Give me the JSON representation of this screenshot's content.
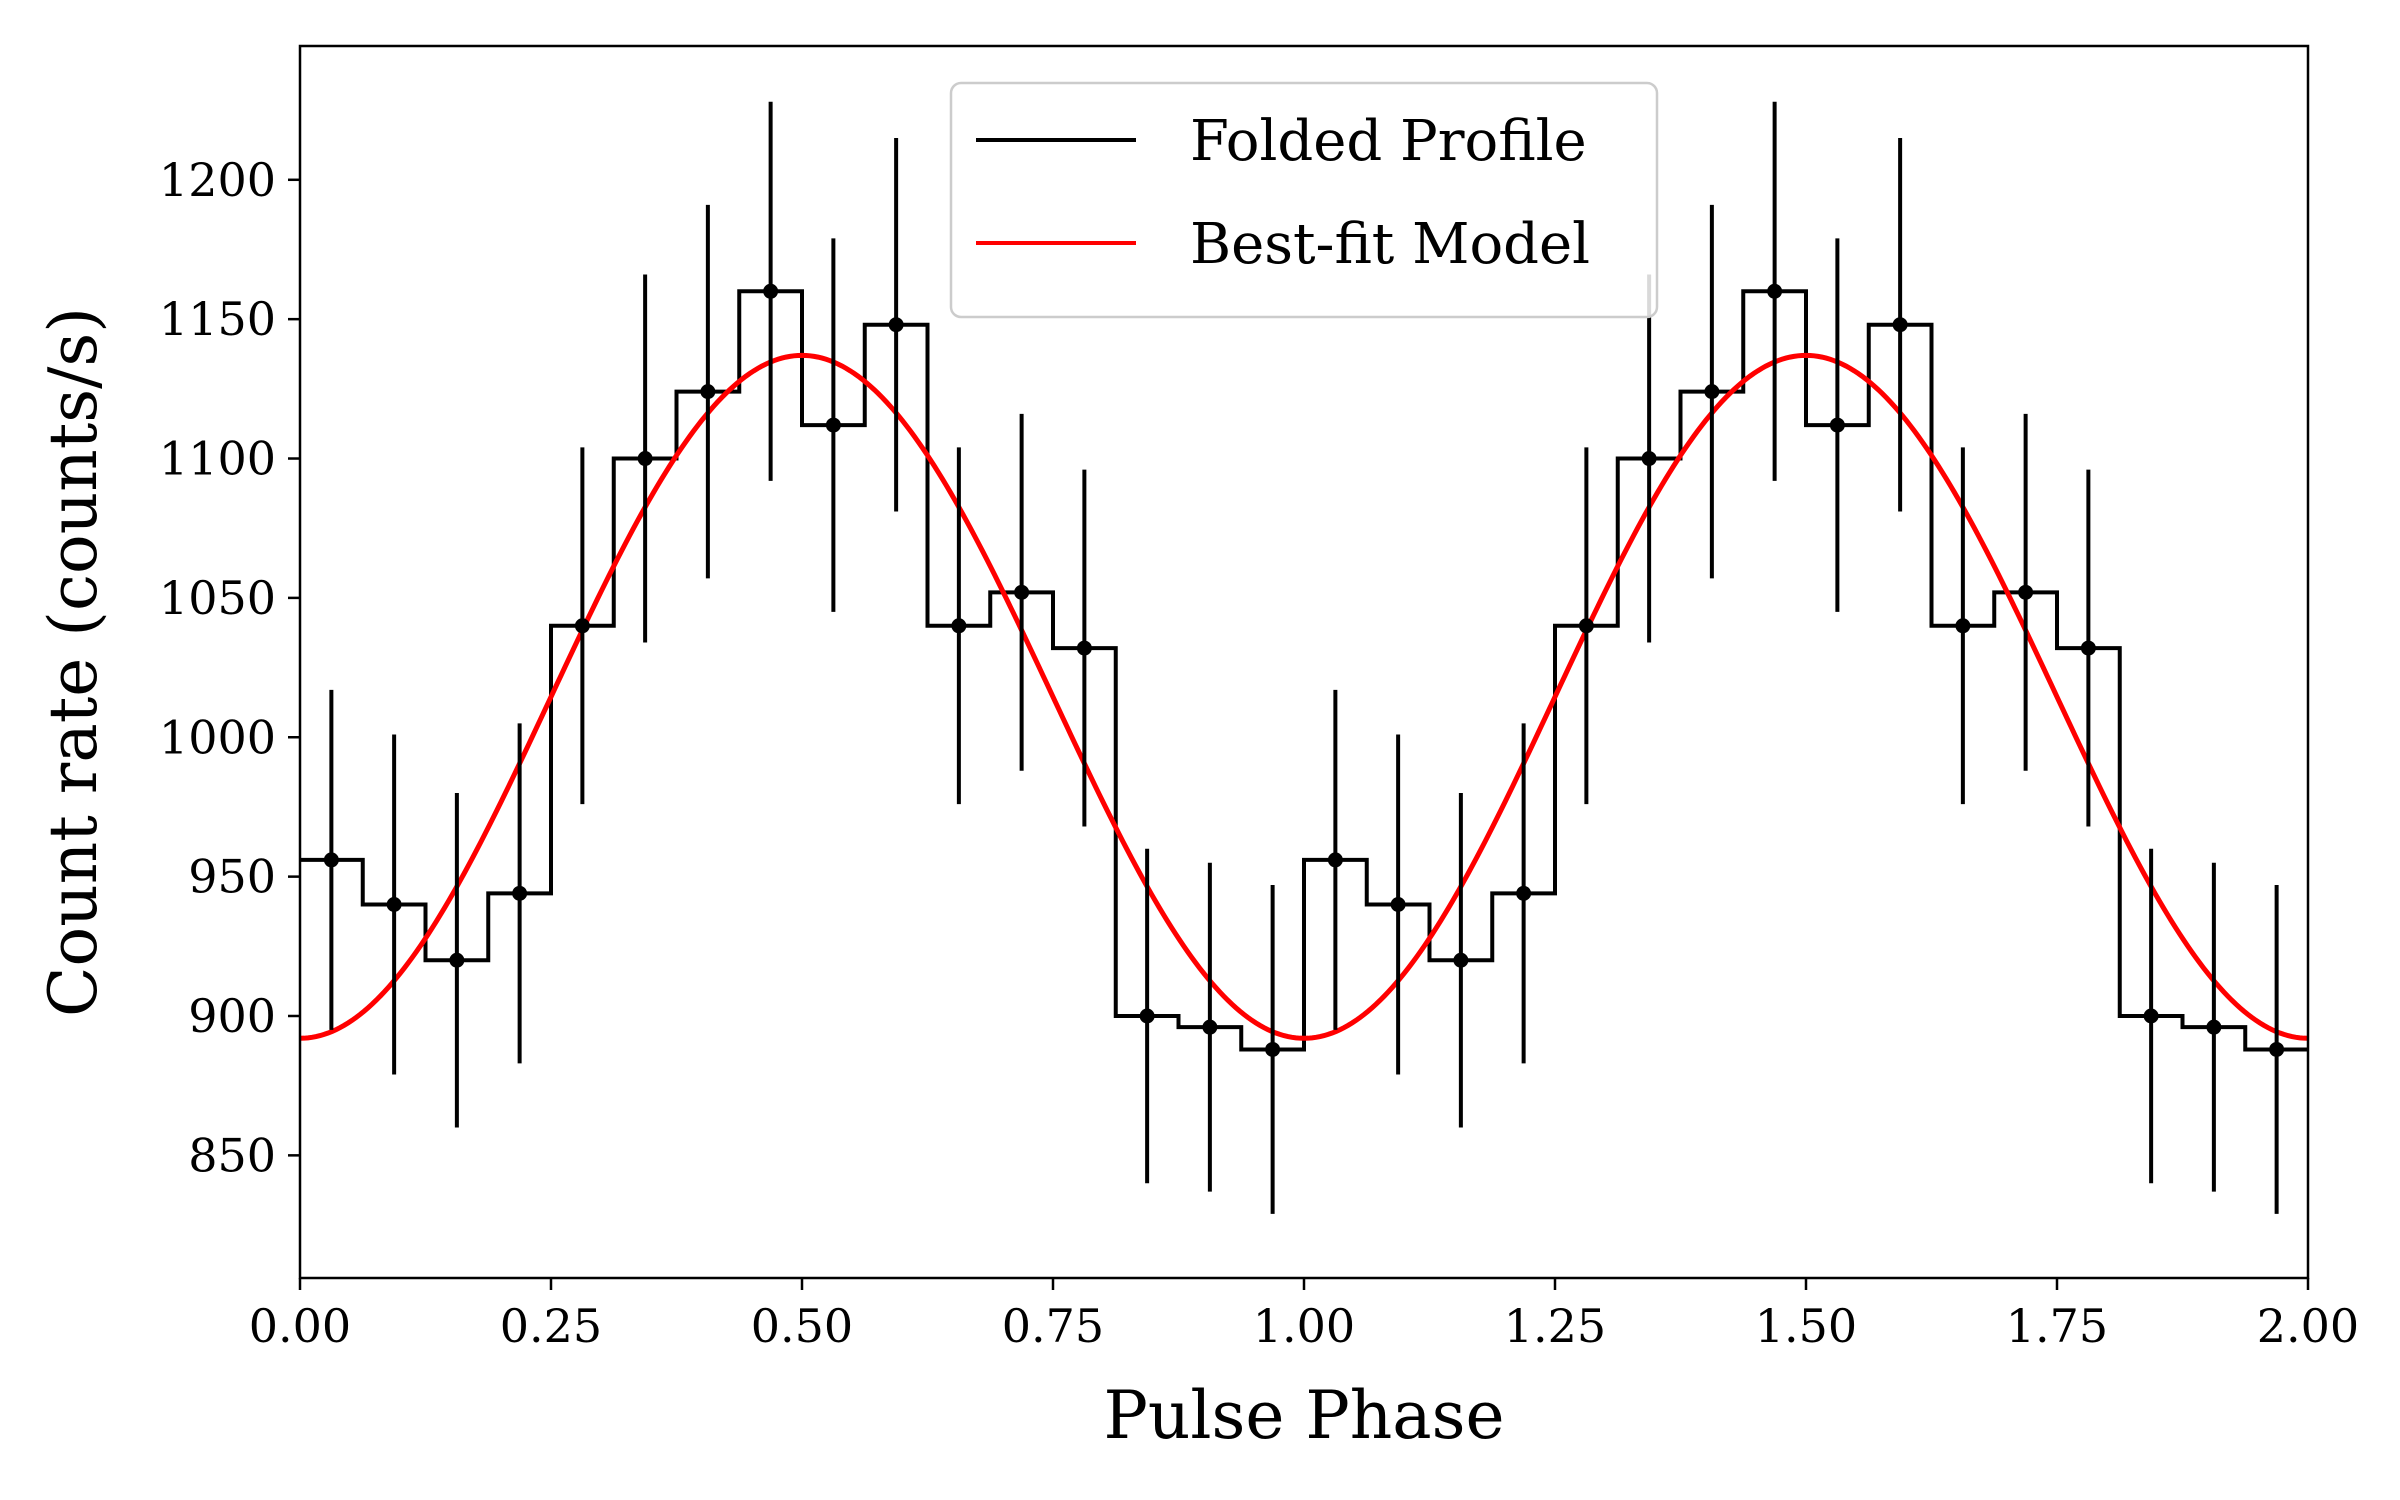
{
  "chart_data": {
    "type": "line",
    "xlabel": "Pulse Phase",
    "ylabel": "Count rate (counts/s)",
    "xlim": [
      0.0,
      2.0
    ],
    "ylim": [
      806,
      1248
    ],
    "xticks": [
      0.0,
      0.25,
      0.5,
      0.75,
      1.0,
      1.25,
      1.5,
      1.75,
      2.0
    ],
    "xtick_labels": [
      "0.00",
      "0.25",
      "0.50",
      "0.75",
      "1.00",
      "1.25",
      "1.50",
      "1.75",
      "2.00"
    ],
    "yticks": [
      850,
      900,
      950,
      1000,
      1050,
      1100,
      1150,
      1200
    ],
    "ytick_labels": [
      "850",
      "900",
      "950",
      "1000",
      "1050",
      "1100",
      "1150",
      "1200"
    ],
    "legend_position": "top-center",
    "series": [
      {
        "name": "Folded Profile",
        "style": "steps-mid with error bars",
        "color": "#000000",
        "bin_width": 0.0625,
        "x": [
          0.03125,
          0.09375,
          0.15625,
          0.21875,
          0.28125,
          0.34375,
          0.40625,
          0.46875,
          0.53125,
          0.59375,
          0.65625,
          0.71875,
          0.78125,
          0.84375,
          0.90625,
          0.96875,
          1.03125,
          1.09375,
          1.15625,
          1.21875,
          1.28125,
          1.34375,
          1.40625,
          1.46875,
          1.53125,
          1.59375,
          1.65625,
          1.71875,
          1.78125,
          1.84375,
          1.90625,
          1.96875
        ],
        "y": [
          956,
          940,
          920,
          944,
          1040,
          1100,
          1124,
          1160,
          1112,
          1148,
          1040,
          1052,
          1032,
          900,
          896,
          888,
          956,
          940,
          920,
          944,
          1040,
          1100,
          1124,
          1160,
          1112,
          1148,
          1040,
          1052,
          1032,
          900,
          896,
          888
        ],
        "yerr": [
          61,
          61,
          60,
          61,
          64,
          66,
          67,
          68,
          67,
          67,
          64,
          64,
          64,
          60,
          59,
          59,
          61,
          61,
          60,
          61,
          64,
          66,
          67,
          68,
          67,
          67,
          64,
          64,
          64,
          60,
          59,
          59
        ]
      },
      {
        "name": "Best-fit Model",
        "style": "line",
        "color": "#ff0000",
        "model": "sinusoid",
        "mean": 1014.5,
        "amplitude": 122.5,
        "period": 1.0,
        "peak_phase": 0.5
      }
    ]
  }
}
